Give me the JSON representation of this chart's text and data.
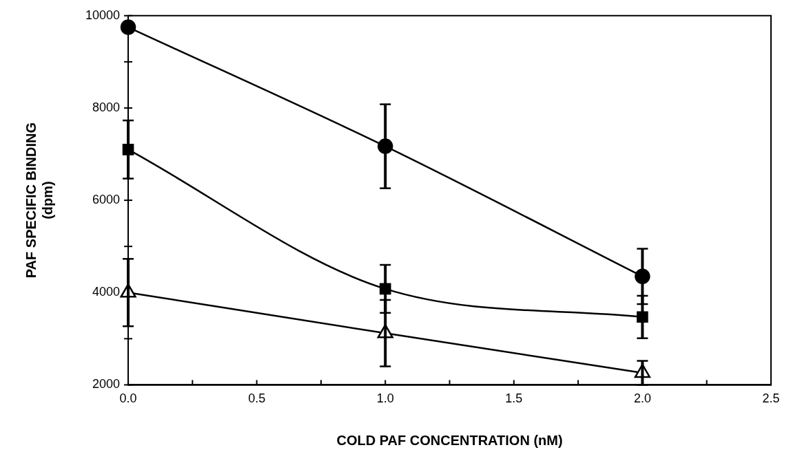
{
  "chart_data": {
    "type": "line",
    "xlabel": "COLD PAF CONCENTRATION (nM)",
    "ylabel": "PAF SPECIFIC BINDING\n(dpm)",
    "x": [
      0,
      1,
      2
    ],
    "series": [
      {
        "color": "#000000",
        "marker": "circle",
        "values": [
          9750,
          7170,
          4350
        ],
        "errors": [
          null,
          910,
          600
        ]
      },
      {
        "color": "#000000",
        "marker": "square",
        "values": [
          7100,
          4080,
          3470
        ],
        "errors": [
          630,
          520,
          460
        ]
      },
      {
        "color": "#000000",
        "marker": "triangle",
        "values": [
          4000,
          3120,
          2260
        ],
        "errors": [
          730,
          720,
          260
        ]
      }
    ],
    "xlim": [
      0,
      2.5
    ],
    "xticks": [
      {
        "value": 0,
        "label": "0.0"
      },
      {
        "value": 0.25,
        "label": null
      },
      {
        "value": 0.5,
        "label": "0.5"
      },
      {
        "value": 0.75,
        "label": null
      },
      {
        "value": 1,
        "label": "1.0"
      },
      {
        "value": 1.25,
        "label": null
      },
      {
        "value": 1.5,
        "label": "1.5"
      },
      {
        "value": 1.75,
        "label": null
      },
      {
        "value": 2,
        "label": "2.0"
      },
      {
        "value": 2.25,
        "label": null
      },
      {
        "value": 2.5,
        "label": "2.5"
      }
    ],
    "ylim": [
      2000,
      10000
    ],
    "yticks": [
      2000,
      {
        "value": 3000,
        "label": null
      },
      4000,
      {
        "value": 5000,
        "label": null
      },
      6000,
      {
        "value": 7000,
        "label": null
      },
      8000,
      {
        "value": 9000,
        "label": null
      },
      10000
    ],
    "grid": false,
    "legend": false,
    "line_style": "solid"
  }
}
